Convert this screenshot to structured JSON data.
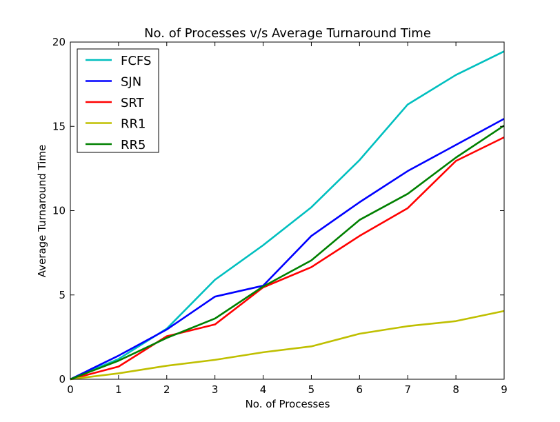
{
  "chart_data": {
    "type": "line",
    "title": "No. of Processes v/s Average Turnaround Time",
    "xlabel": "No. of Processes",
    "ylabel": "Average Turnaround Time",
    "x": [
      0,
      1,
      2,
      3,
      4,
      5,
      6,
      7,
      8,
      9
    ],
    "xlim": [
      0,
      9
    ],
    "ylim": [
      0,
      20
    ],
    "xticks": [
      0,
      1,
      2,
      3,
      4,
      5,
      6,
      7,
      8,
      9
    ],
    "yticks": [
      0,
      5,
      10,
      15,
      20
    ],
    "grid": false,
    "legend_position": "top-left",
    "series": [
      {
        "name": "FCFS",
        "color": "#00bfbf",
        "values": [
          0,
          1.2,
          3.0,
          5.9,
          7.95,
          10.2,
          13.0,
          16.3,
          18.05,
          19.45
        ]
      },
      {
        "name": "SJN",
        "color": "#0000ff",
        "values": [
          0,
          1.4,
          2.95,
          4.9,
          5.55,
          8.5,
          10.5,
          12.35,
          13.9,
          15.45
        ]
      },
      {
        "name": "SRT",
        "color": "#ff0000",
        "values": [
          0,
          0.75,
          2.55,
          3.25,
          5.45,
          6.65,
          8.5,
          10.15,
          12.95,
          14.35
        ]
      },
      {
        "name": "RR1",
        "color": "#bfbf00",
        "values": [
          0,
          0.35,
          0.8,
          1.15,
          1.6,
          1.95,
          2.7,
          3.15,
          3.45,
          4.05
        ]
      },
      {
        "name": "RR5",
        "color": "#008000",
        "values": [
          0,
          1.1,
          2.45,
          3.6,
          5.5,
          7.05,
          9.45,
          11.0,
          13.15,
          15.05
        ]
      }
    ]
  }
}
